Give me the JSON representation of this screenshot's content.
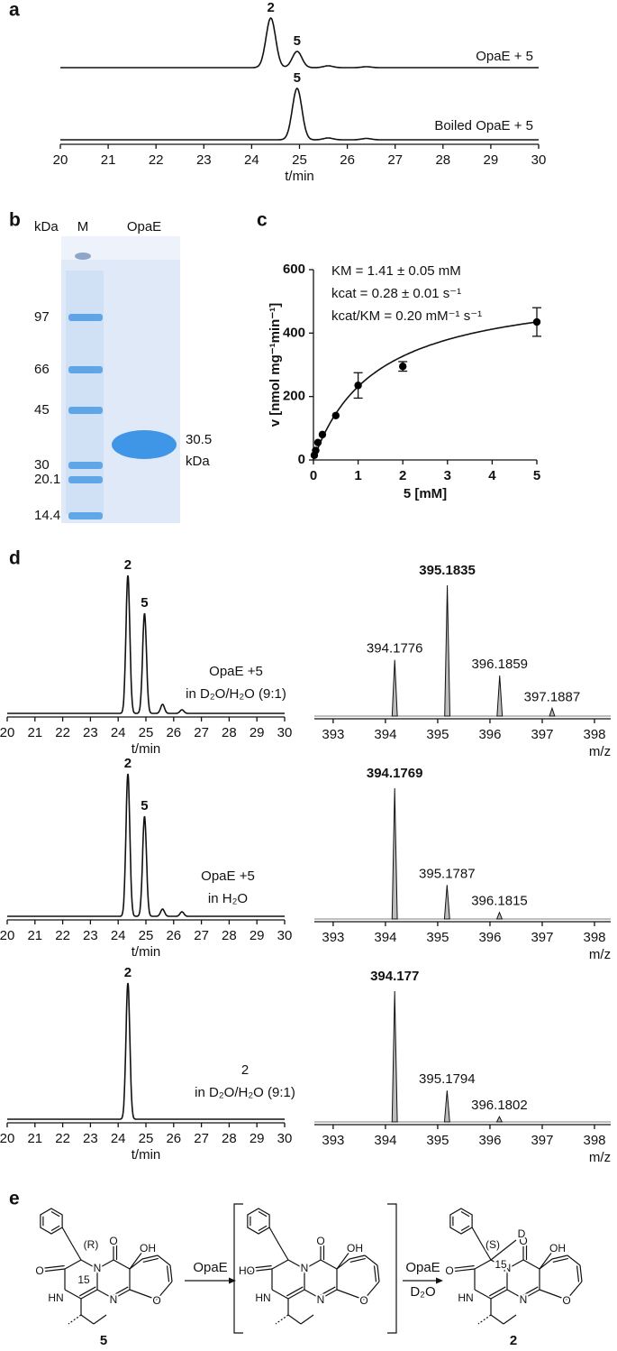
{
  "panel_labels": [
    "a",
    "b",
    "c",
    "d",
    "e"
  ],
  "chart_data": [
    {
      "type": "chromatogram",
      "xlabel": "t/min",
      "xlim": [
        20,
        30
      ],
      "xticks": [
        20,
        21,
        22,
        23,
        24,
        25,
        26,
        27,
        28,
        29,
        30
      ],
      "peak_width": 0.1,
      "traces": [
        {
          "name_lines": [
            "OpaE + 5"
          ],
          "peaks": [
            {
              "x": 24.4,
              "height": 55,
              "label": "2"
            },
            {
              "x": 24.95,
              "height": 18,
              "label": "5"
            },
            {
              "x": 25.6,
              "height": 2
            },
            {
              "x": 26.4,
              "height": 1
            }
          ]
        },
        {
          "name_lines": [
            "Boiled OpaE + 5"
          ],
          "peaks": [
            {
              "x": 24.95,
              "height": 57,
              "label": "5"
            },
            {
              "x": 25.6,
              "height": 2
            },
            {
              "x": 26.4,
              "height": 1.5
            }
          ]
        }
      ]
    },
    {
      "type": "scatter",
      "xlabel": "5 [mM]",
      "ylabel": "v [nmol mg⁻¹min⁻¹]",
      "xlim": [
        0,
        5
      ],
      "ylim": [
        0,
        600
      ],
      "xticks": [
        0,
        1,
        2,
        3,
        4,
        5
      ],
      "yticks": [
        0,
        200,
        400,
        600
      ],
      "color": "#000000",
      "x": [
        0.02,
        0.05,
        0.1,
        0.2,
        0.5,
        1,
        2,
        5
      ],
      "values": [
        15,
        30,
        55,
        80,
        140,
        235,
        295,
        435
      ],
      "errors": [
        null,
        null,
        null,
        null,
        null,
        40,
        15,
        45
      ],
      "fit": {
        "vmax": 557.7,
        "km": 1.41
      },
      "annotations": [
        "KM = 1.41 ± 0.05 mM",
        "kcat = 0.28 ± 0.01 s⁻¹",
        "kcat/KM = 0.20 mM⁻¹ s⁻¹"
      ]
    },
    {
      "type": "chromatogram",
      "xlabel": "t/min",
      "xlim": [
        20,
        30
      ],
      "xticks": [
        20,
        21,
        22,
        23,
        24,
        25,
        26,
        27,
        28,
        29,
        30
      ],
      "peak_width": 0.07,
      "traces": [
        {
          "name_lines": [
            "OpaE +5",
            "in D₂O/H₂O (9:1)"
          ],
          "peaks": [
            {
              "x": 24.35,
              "height": 153,
              "label": "2",
              "color": "#e02020"
            },
            {
              "x": 24.95,
              "height": 111,
              "label": "5"
            },
            {
              "x": 25.6,
              "height": 10
            },
            {
              "x": 26.3,
              "height": 4
            }
          ]
        }
      ]
    },
    {
      "type": "spectrum",
      "xlabel": "m/z",
      "xlim": [
        392.64,
        398.31
      ],
      "xticks": [
        393,
        394,
        395,
        396,
        397,
        398
      ],
      "peaks": [
        {
          "x": 394.1776,
          "height": 43
        },
        {
          "x": 395.1835,
          "height": 100,
          "label_color": "#e02020"
        },
        {
          "x": 396.1859,
          "height": 31
        },
        {
          "x": 397.1887,
          "height": 6
        }
      ]
    },
    {
      "type": "chromatogram",
      "xlabel": "t/min",
      "xlim": [
        20,
        30
      ],
      "xticks": [
        20,
        21,
        22,
        23,
        24,
        25,
        26,
        27,
        28,
        29,
        30
      ],
      "peak_width": 0.07,
      "traces": [
        {
          "name_lines": [
            "OpaE +5",
            "in H₂O"
          ],
          "peaks": [
            {
              "x": 24.35,
              "height": 158,
              "label": "2",
              "color": "#1a7bc4"
            },
            {
              "x": 24.95,
              "height": 111,
              "label": "5"
            },
            {
              "x": 25.6,
              "height": 8
            },
            {
              "x": 26.3,
              "height": 5
            }
          ]
        }
      ]
    },
    {
      "type": "spectrum",
      "xlabel": "m/z",
      "xlim": [
        392.64,
        398.31
      ],
      "xticks": [
        393,
        394,
        395,
        396,
        397,
        398
      ],
      "peaks": [
        {
          "x": 394.1769,
          "height": 100,
          "label_color": "#1a7bc4"
        },
        {
          "x": 395.1787,
          "height": 26
        },
        {
          "x": 396.1815,
          "height": 5
        }
      ]
    },
    {
      "type": "chromatogram",
      "xlabel": "t/min",
      "xlim": [
        20,
        30
      ],
      "xticks": [
        20,
        21,
        22,
        23,
        24,
        25,
        26,
        27,
        28,
        29,
        30
      ],
      "peak_width": 0.07,
      "traces": [
        {
          "name_lines": [
            "2",
            "in D₂O/H₂O (9:1)"
          ],
          "peaks": [
            {
              "x": 24.35,
              "height": 151,
              "label": "2",
              "color": "#1a7bc4"
            }
          ]
        }
      ]
    },
    {
      "type": "spectrum",
      "xlabel": "m/z",
      "xlim": [
        392.64,
        398.31
      ],
      "xticks": [
        393,
        394,
        395,
        396,
        397,
        398
      ],
      "peaks": [
        {
          "x": 394.177,
          "height": 100,
          "label_color": "#1a7bc4"
        },
        {
          "x": 395.1794,
          "height": 24
        },
        {
          "x": 396.1802,
          "height": 4
        }
      ]
    }
  ],
  "gel": {
    "header": [
      "kDa",
      "M",
      "OpaE"
    ],
    "markers": [
      "97",
      "66",
      "45",
      "30",
      "20.1",
      "14.4"
    ],
    "band_label": [
      "30.5",
      "kDa"
    ]
  },
  "scheme": {
    "compounds": [
      {
        "number": "5",
        "atoms": [
          {
            "text": "O"
          },
          {
            "text": "HN"
          },
          {
            "text": "N"
          },
          {
            "text": "N"
          },
          {
            "text": "O"
          },
          {
            "text": "OH"
          },
          {
            "text": "O"
          },
          {
            "text": "(R)"
          },
          {
            "text": "15"
          }
        ]
      },
      {
        "atoms": [
          {
            "text": "HO"
          },
          {
            "text": "HN"
          },
          {
            "text": "N"
          },
          {
            "text": "N"
          },
          {
            "text": "O"
          },
          {
            "text": "OH"
          },
          {
            "text": "O"
          }
        ]
      },
      {
        "number": "2",
        "atoms": [
          {
            "text": "O"
          },
          {
            "text": "HN"
          },
          {
            "text": "N"
          },
          {
            "text": "N"
          },
          {
            "text": "O"
          },
          {
            "text": "OH"
          },
          {
            "text": "O"
          },
          {
            "text": "(S)"
          },
          {
            "text": "15"
          },
          {
            "text": "D",
            "color": "#e02020"
          }
        ]
      }
    ],
    "arrows": [
      {
        "label": "OpaE"
      },
      {
        "label": "OpaE",
        "below": "D₂O",
        "below_color": "#e02020"
      }
    ]
  }
}
